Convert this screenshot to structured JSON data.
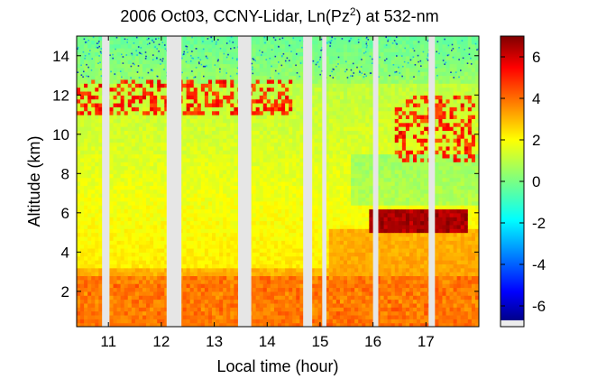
{
  "chart_data": [
    {
      "type": "heatmap",
      "title": {
        "prefix": "2006 Oct03, CCNY-Lidar, Ln(Pz",
        "superscript": "2",
        "suffix": ") at 532-nm"
      },
      "xlabel": "Local time (hour)",
      "ylabel": "Altitude (km)",
      "xlim": [
        10.4,
        18.0
      ],
      "ylim": [
        0.2,
        15.0
      ],
      "xticks": [
        11,
        12,
        13,
        14,
        15,
        16,
        17
      ],
      "yticks": [
        2,
        4,
        6,
        8,
        10,
        12,
        14
      ],
      "colormap": "jet",
      "clim": [
        -7,
        7
      ],
      "colorbar_ticks": [
        6,
        4,
        2,
        0,
        -2,
        -4,
        -6
      ],
      "data_gaps_hours": [
        [
          10.88,
          11.02
        ],
        [
          12.1,
          12.38
        ],
        [
          13.45,
          13.7
        ],
        [
          14.68,
          14.85
        ],
        [
          15.04,
          15.12
        ],
        [
          16.0,
          16.1
        ],
        [
          17.05,
          17.17
        ]
      ],
      "gap_color": "#e6e6e6",
      "features": [
        {
          "label": "boundary layer aerosol",
          "time_range": [
            10.4,
            18.0
          ],
          "altitude_km": [
            0.2,
            2.8
          ],
          "value": 4.0
        },
        {
          "label": "cirrus layer",
          "time_range": [
            10.4,
            14.5
          ],
          "altitude_km": [
            11.0,
            12.8
          ],
          "value": 5.5
        },
        {
          "label": "dense cloud",
          "time_range": [
            15.9,
            17.8
          ],
          "altitude_km": [
            5.0,
            6.3
          ],
          "value": 6.8
        },
        {
          "label": "high cloud",
          "time_range": [
            16.4,
            17.9
          ],
          "altitude_km": [
            8.7,
            11.9
          ],
          "value": 5.5
        }
      ]
    }
  ]
}
